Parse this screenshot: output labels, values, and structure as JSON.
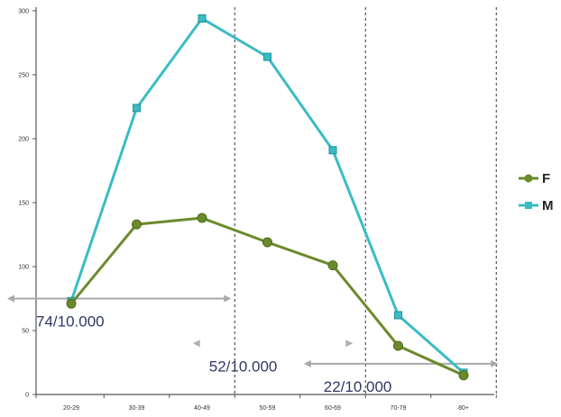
{
  "chart_data": {
    "type": "line",
    "categories": [
      "20-29",
      "30-39",
      "40-49",
      "50-59",
      "60-69",
      "70-79",
      "80+"
    ],
    "ylim": [
      0,
      300
    ],
    "yticks": [
      0,
      50,
      100,
      150,
      200,
      250,
      300
    ],
    "grid": false,
    "legend_position": "right",
    "series": [
      {
        "name": "F",
        "color": "#6b8a2b",
        "marker": "circle",
        "values": [
          71,
          133,
          138,
          119,
          101,
          38,
          15
        ]
      },
      {
        "name": "M",
        "color": "#3bbcc4",
        "marker": "square",
        "values": [
          73,
          224,
          294,
          264,
          191,
          62,
          17
        ]
      }
    ],
    "divider_after_categories": [
      "40-49",
      "60-69",
      "80+"
    ],
    "annotations": [
      {
        "text": "74/10.000",
        "from": "20-29",
        "to": "40-49",
        "arrow_y": 75,
        "text_y": 53
      },
      {
        "text": "52/10.000",
        "from": "40-49",
        "to": "60-69",
        "arrow_y": 40,
        "text_y": 18
      },
      {
        "text": "22/10.000",
        "from": "60-69",
        "to": "80+",
        "arrow_y": 24,
        "text_y": 2
      }
    ]
  }
}
